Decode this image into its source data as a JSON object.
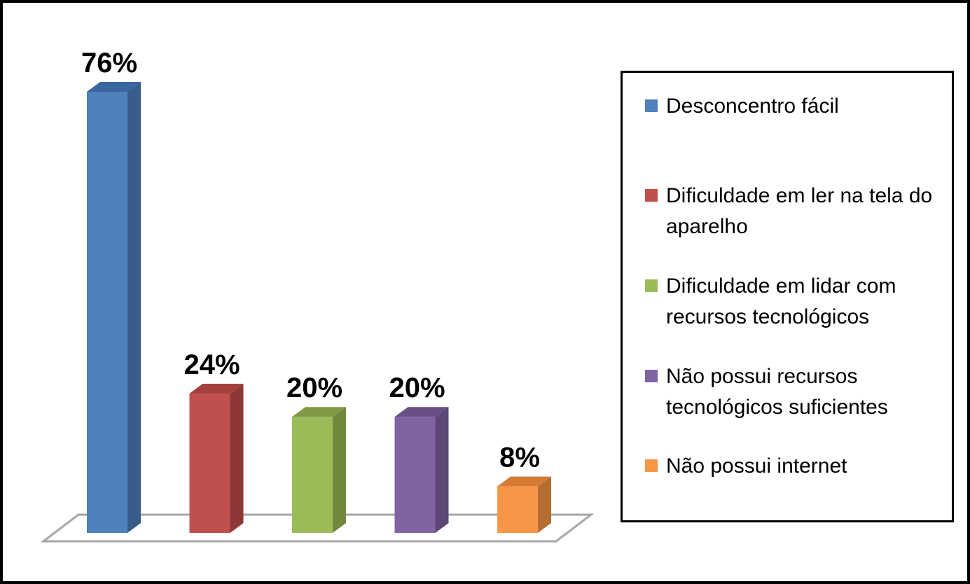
{
  "chart_data": {
    "type": "bar",
    "title": "",
    "xlabel": "",
    "ylabel": "",
    "ylim": [
      0,
      76
    ],
    "categories": [
      "Desconcentro fácil",
      "Dificuldade em ler na tela do aparelho",
      "Dificuldade em lidar com recursos tecnológicos",
      "Não possui recursos tecnológicos suficientes",
      "Não possui internet"
    ],
    "values": [
      76,
      24,
      20,
      20,
      8
    ],
    "value_labels": [
      "76%",
      "24%",
      "20%",
      "20%",
      "8%"
    ],
    "colors": [
      "#4F81BD",
      "#C0504D",
      "#9BBB59",
      "#8064A2",
      "#F79646"
    ],
    "side_colors": [
      "#385D8A",
      "#8C3836",
      "#71893F",
      "#5C4776",
      "#B66D31"
    ],
    "top_colors": [
      "#3A66A0",
      "#A33F3D",
      "#7E9A45",
      "#684F88",
      "#D67A35"
    ],
    "grid": false,
    "legend_position": "right"
  },
  "legend": {
    "items": [
      "Desconcentro fácil",
      "Dificuldade em ler na tela do aparelho",
      "Dificuldade em lidar com recursos tecnológicos",
      "Não possui recursos tecnológicos suficientes",
      "Não possui internet"
    ]
  }
}
